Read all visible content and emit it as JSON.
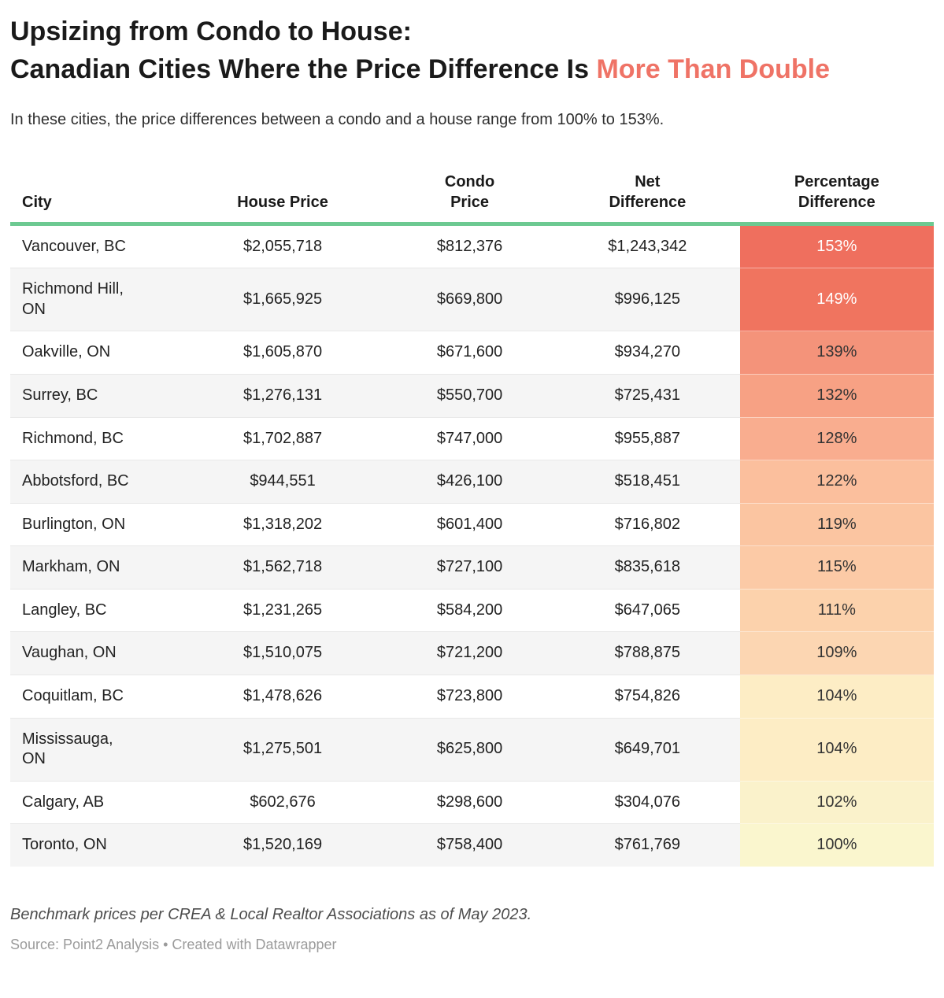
{
  "header": {
    "title_line1": "Upsizing from Condo to House:",
    "title_line2": "Canadian Cities Where the Price Difference Is ",
    "title_accent": "More Than Double",
    "subtitle": "In these cities, the price differences between a condo and a house range from 100% to 153%."
  },
  "colors": {
    "accent": "#ef7366",
    "header_rule": "#6cc991",
    "row_alt_bg": "#f5f5f5",
    "pct_text_light": "#ffffff",
    "pct_text_dark": "#333333"
  },
  "table": {
    "columns": [
      "City",
      "House Price",
      "Condo\nPrice",
      "Net\nDifference",
      "Percentage\nDifference"
    ],
    "rows": [
      {
        "city": "Vancouver, BC",
        "house": "$2,055,718",
        "condo": "$812,376",
        "net": "$1,243,342",
        "pct": "153%",
        "pct_bg": "#ef6f5e",
        "pct_text": "#ffffff"
      },
      {
        "city": "Richmond Hill,\nON",
        "house": "$1,665,925",
        "condo": "$669,800",
        "net": "$996,125",
        "pct": "149%",
        "pct_bg": "#f0745f",
        "pct_text": "#ffffff"
      },
      {
        "city": "Oakville, ON",
        "house": "$1,605,870",
        "condo": "$671,600",
        "net": "$934,270",
        "pct": "139%",
        "pct_bg": "#f4937a",
        "pct_text": "#333333"
      },
      {
        "city": "Surrey, BC",
        "house": "$1,276,131",
        "condo": "$550,700",
        "net": "$725,431",
        "pct": "132%",
        "pct_bg": "#f7a184",
        "pct_text": "#333333"
      },
      {
        "city": "Richmond, BC",
        "house": "$1,702,887",
        "condo": "$747,000",
        "net": "$955,887",
        "pct": "128%",
        "pct_bg": "#f9ad8f",
        "pct_text": "#333333"
      },
      {
        "city": "Abbotsford, BC",
        "house": "$944,551",
        "condo": "$426,100",
        "net": "$518,451",
        "pct": "122%",
        "pct_bg": "#fbbf9d",
        "pct_text": "#333333"
      },
      {
        "city": "Burlington, ON",
        "house": "$1,318,202",
        "condo": "$601,400",
        "net": "$716,802",
        "pct": "119%",
        "pct_bg": "#fbc5a1",
        "pct_text": "#333333"
      },
      {
        "city": "Markham, ON",
        "house": "$1,562,718",
        "condo": "$727,100",
        "net": "$835,618",
        "pct": "115%",
        "pct_bg": "#fccaa6",
        "pct_text": "#333333"
      },
      {
        "city": "Langley, BC",
        "house": "$1,231,265",
        "condo": "$584,200",
        "net": "$647,065",
        "pct": "111%",
        "pct_bg": "#fcd2ac",
        "pct_text": "#333333"
      },
      {
        "city": "Vaughan, ON",
        "house": "$1,510,075",
        "condo": "$721,200",
        "net": "$788,875",
        "pct": "109%",
        "pct_bg": "#fcd6b2",
        "pct_text": "#333333"
      },
      {
        "city": "Coquitlam, BC",
        "house": "$1,478,626",
        "condo": "$723,800",
        "net": "$754,826",
        "pct": "104%",
        "pct_bg": "#fdedc5",
        "pct_text": "#333333"
      },
      {
        "city": "Mississauga,\nON",
        "house": "$1,275,501",
        "condo": "$625,800",
        "net": "$649,701",
        "pct": "104%",
        "pct_bg": "#fdedc5",
        "pct_text": "#333333"
      },
      {
        "city": "Calgary, AB",
        "house": "$602,676",
        "condo": "$298,600",
        "net": "$304,076",
        "pct": "102%",
        "pct_bg": "#faf2cb",
        "pct_text": "#333333"
      },
      {
        "city": "Toronto, ON",
        "house": "$1,520,169",
        "condo": "$758,400",
        "net": "$761,769",
        "pct": "100%",
        "pct_bg": "#faf6ce",
        "pct_text": "#333333"
      }
    ]
  },
  "footer": {
    "note": "Benchmark prices per CREA & Local Realtor Associations as of May 2023.",
    "source": "Source: Point2 Analysis • Created with Datawrapper"
  },
  "chart_data": {
    "type": "table",
    "title": "Upsizing from Condo to House: Canadian Cities Where the Price Difference Is More Than Double",
    "subtitle": "In these cities, the price differences between a condo and a house range from 100% to 153%.",
    "columns": [
      "City",
      "House Price",
      "Condo Price",
      "Net Difference",
      "Percentage Difference"
    ],
    "rows": [
      [
        "Vancouver, BC",
        2055718,
        812376,
        1243342,
        153
      ],
      [
        "Richmond Hill, ON",
        1665925,
        669800,
        996125,
        149
      ],
      [
        "Oakville, ON",
        1605870,
        671600,
        934270,
        139
      ],
      [
        "Surrey, BC",
        1276131,
        550700,
        725431,
        132
      ],
      [
        "Richmond, BC",
        1702887,
        747000,
        955887,
        128
      ],
      [
        "Abbotsford, BC",
        944551,
        426100,
        518451,
        122
      ],
      [
        "Burlington, ON",
        1318202,
        601400,
        716802,
        119
      ],
      [
        "Markham, ON",
        1562718,
        727100,
        835618,
        115
      ],
      [
        "Langley, BC",
        1231265,
        584200,
        647065,
        111
      ],
      [
        "Vaughan, ON",
        1510075,
        721200,
        788875,
        109
      ],
      [
        "Coquitlam, BC",
        1478626,
        723800,
        754826,
        104
      ],
      [
        "Mississauga, ON",
        1275501,
        625800,
        649701,
        104
      ],
      [
        "Calgary, AB",
        602676,
        298600,
        304076,
        102
      ],
      [
        "Toronto, ON",
        1520169,
        758400,
        761769,
        100
      ]
    ],
    "heatmap_column": "Percentage Difference",
    "heatmap_range": [
      "#ef6f5e",
      "#faf6ce"
    ],
    "notes": "Benchmark prices per CREA & Local Realtor Associations as of May 2023.",
    "source": "Point2 Analysis • Created with Datawrapper"
  }
}
